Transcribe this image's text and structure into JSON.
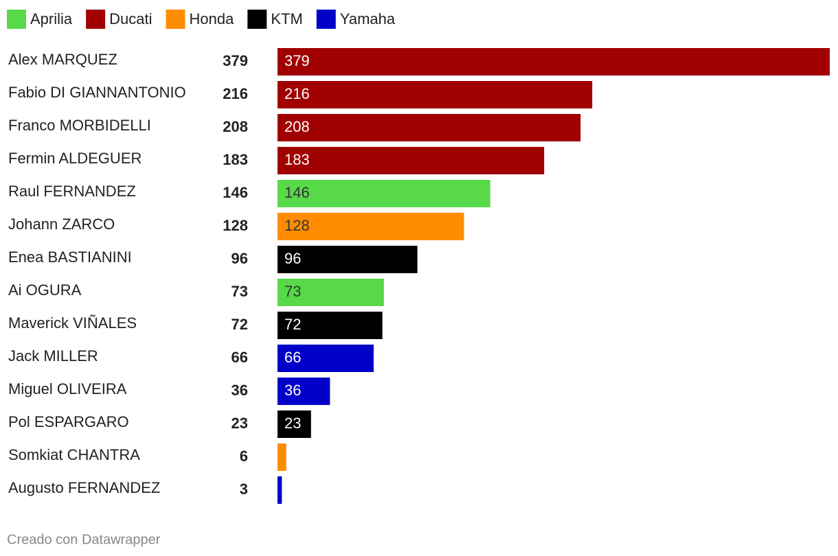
{
  "chart_data": {
    "type": "bar",
    "legend": [
      {
        "name": "Aprilia",
        "color": "#57d94a"
      },
      {
        "name": "Ducati",
        "color": "#a10000"
      },
      {
        "name": "Honda",
        "color": "#ff8c00"
      },
      {
        "name": "KTM",
        "color": "#000000"
      },
      {
        "name": "Yamaha",
        "color": "#0000c8"
      }
    ],
    "categories": [
      "Alex MARQUEZ",
      "Fabio DI GIANNANTONIO",
      "Franco MORBIDELLI",
      "Fermin ALDEGUER",
      "Raul FERNANDEZ",
      "Johann ZARCO",
      "Enea BASTIANINI",
      "Ai OGURA",
      "Maverick VIÑALES",
      "Jack MILLER",
      "Miguel OLIVEIRA",
      "Pol ESPARGARO",
      "Somkiat CHANTRA",
      "Augusto FERNANDEZ"
    ],
    "values": [
      379,
      216,
      208,
      183,
      146,
      128,
      96,
      73,
      72,
      66,
      36,
      23,
      6,
      3
    ],
    "bar_colors": [
      "#a10000",
      "#a10000",
      "#a10000",
      "#a10000",
      "#57d94a",
      "#ff8c00",
      "#000000",
      "#57d94a",
      "#000000",
      "#0000c8",
      "#0000c8",
      "#000000",
      "#ff8c00",
      "#0000c8"
    ],
    "xlim": [
      0,
      379
    ],
    "footer": "Creado con Datawrapper"
  }
}
